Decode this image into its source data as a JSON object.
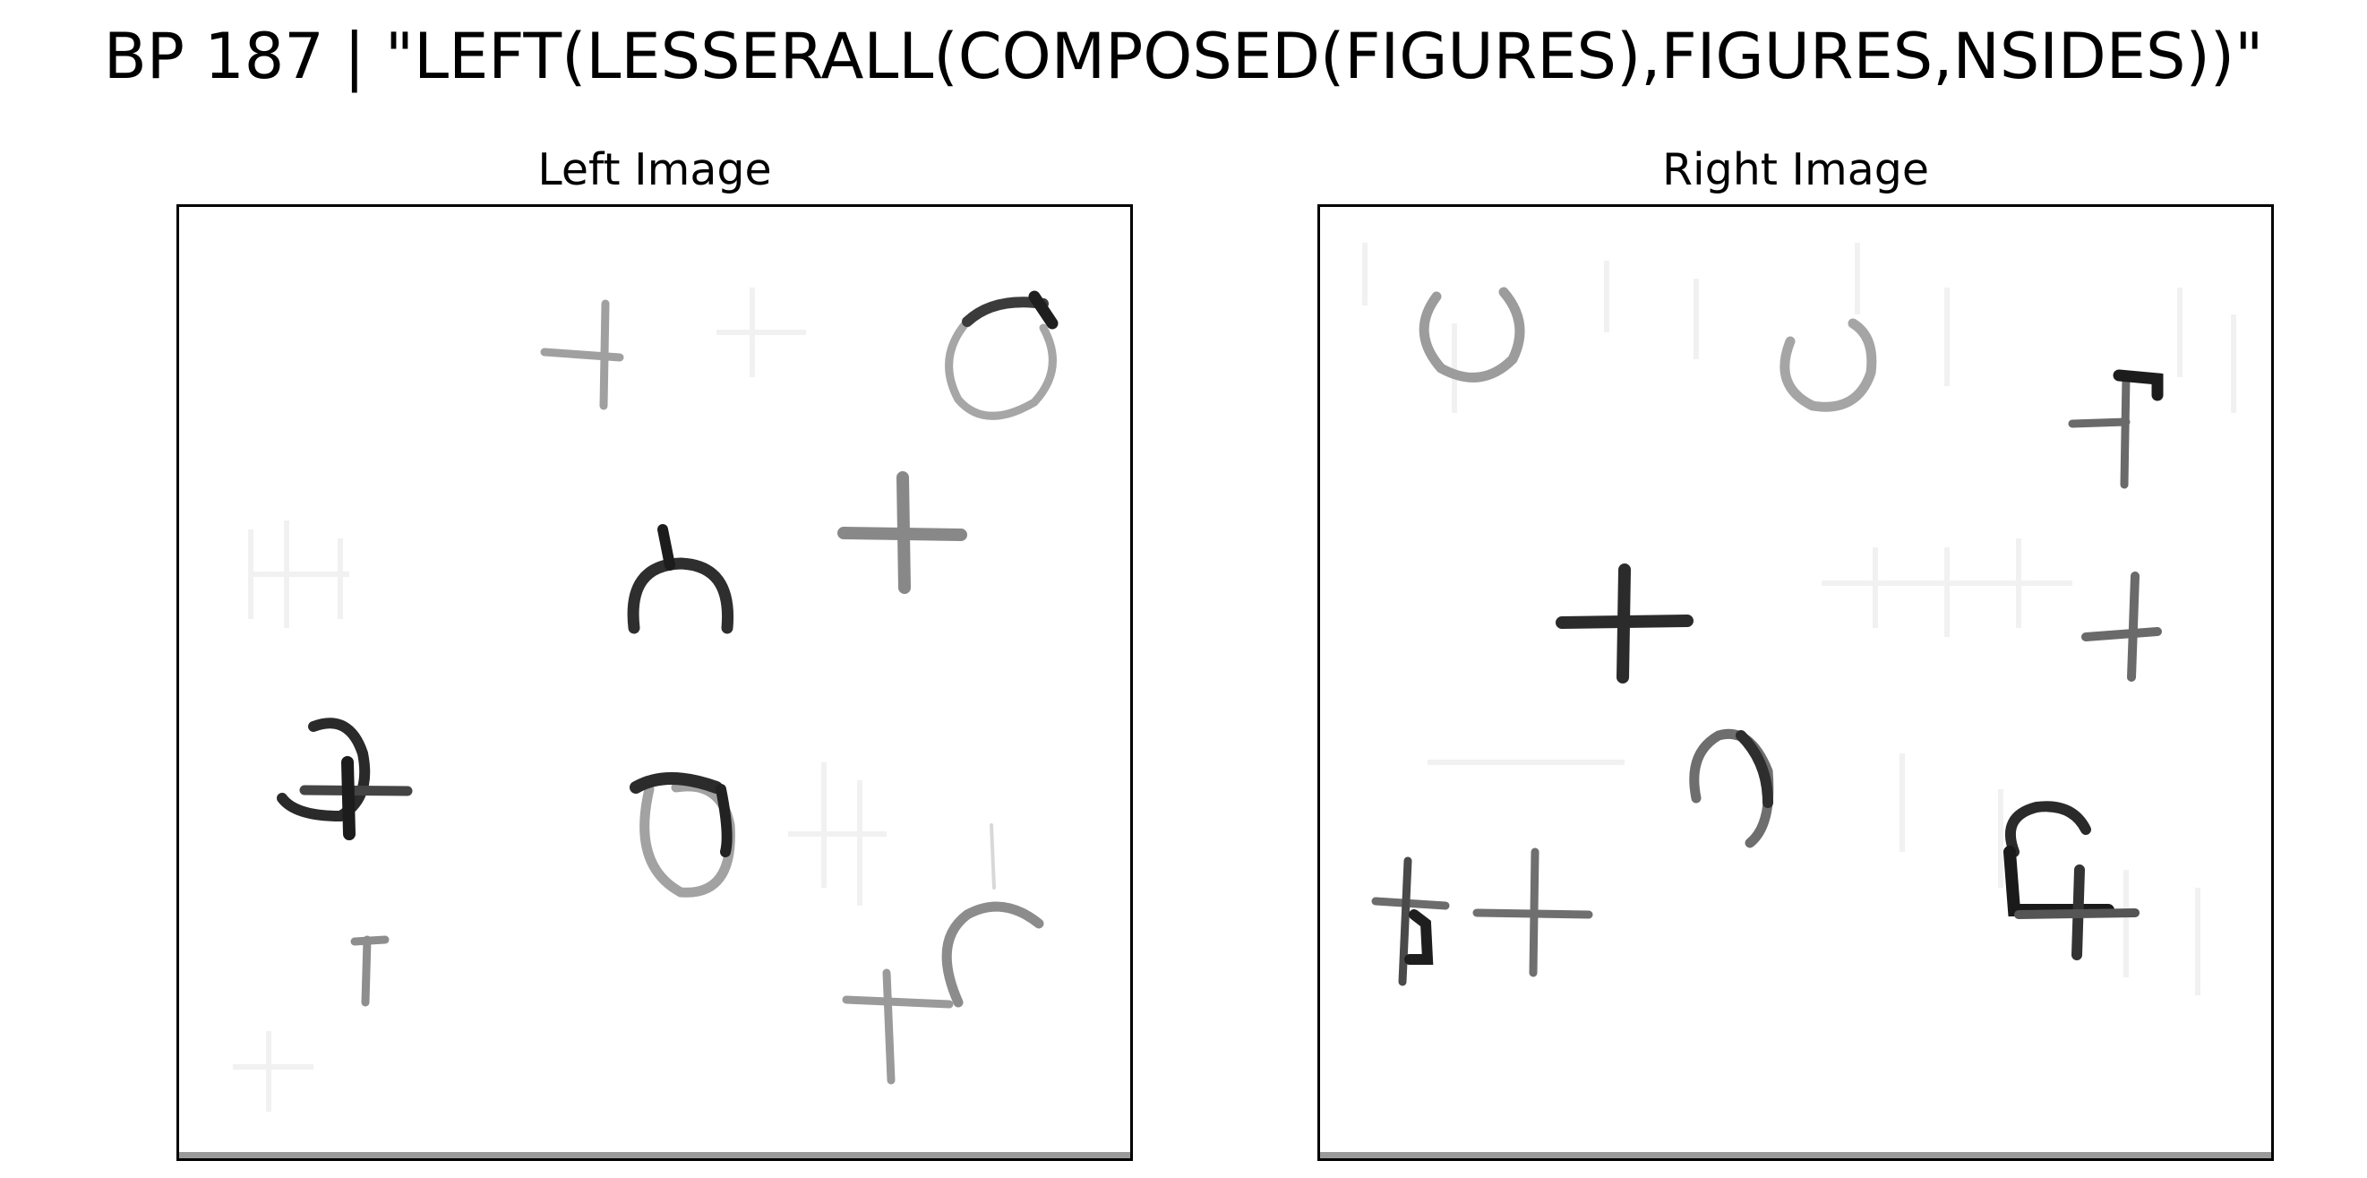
{
  "title": "BP 187 | \"LEFT(LESSERALL(COMPOSED(FIGURES),FIGURES,NSIDES))\"",
  "panels": {
    "left": {
      "title": "Left Image",
      "figures": [
        "cross",
        "circle",
        "cross-composed",
        "circle",
        "cross",
        "cross-composed",
        "cross",
        "cross-composed",
        "cross-composed"
      ]
    },
    "right": {
      "title": "Right Image",
      "figures": [
        "circle",
        "circle",
        "cross-composed",
        "cross",
        "cross",
        "circle",
        "cross-composed",
        "cross",
        "cross-composed"
      ]
    }
  },
  "colors": {
    "background": "#ffffff",
    "frame": "#000000",
    "stroke_dark": "#1a1a1a",
    "stroke_mid": "#6e6e6e",
    "stroke_light": "#a8a8a8",
    "ghost": "#f2f2f2",
    "bottom_bar": "#9a9a9a"
  }
}
